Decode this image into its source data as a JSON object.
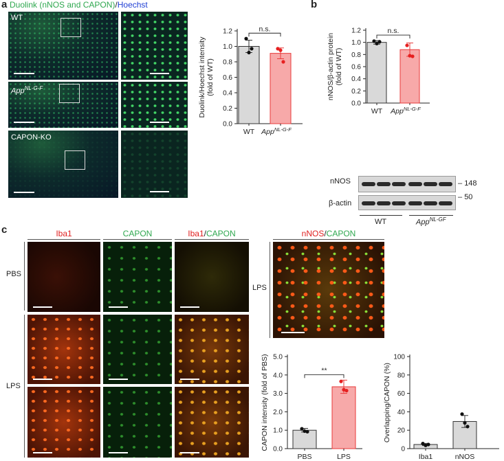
{
  "panel_a": {
    "letter": "a",
    "header_green": "Duolink (nNOS and CAPON)",
    "header_sep": "/",
    "header_blue": "Hoechst",
    "rows": [
      {
        "label": "WT",
        "label_sup": ""
      },
      {
        "label": "App",
        "label_sup": "NL-G-F"
      },
      {
        "label": "CAPON-KO",
        "label_sup": ""
      }
    ]
  },
  "panel_b": {
    "letter": "b",
    "blot_labels": {
      "nnos": "nNOS",
      "actin": "β-actin",
      "mw1": "148",
      "mw2": "50",
      "wt": "WT",
      "app": "App",
      "app_sup": "NL-GF"
    }
  },
  "panel_c": {
    "letter": "c",
    "col_headers": {
      "iba1": "Iba1",
      "capon": "CAPON",
      "merge_a": "Iba1",
      "merge_sep": "/",
      "merge_b": "CAPON",
      "nnos_a": "nNOS",
      "nnos_sep": "/",
      "nnos_b": "CAPON"
    },
    "row_labels": {
      "pbs": "PBS",
      "lps": "LPS",
      "lps_right": "LPS"
    }
  },
  "colors": {
    "wt_bar": "#d9d9d9",
    "app_bar": "#f7a9a9",
    "app_stroke": "#e83a3a",
    "dot_red": "#e62020",
    "green": "#2fa84f",
    "blue": "#1f3fd4",
    "red_text": "#e02020"
  },
  "chart_data": [
    {
      "type": "bar",
      "id": "a-chart",
      "categories": [
        "WT",
        "App NL-G-F"
      ],
      "values": [
        1.0,
        0.91
      ],
      "errors": [
        0.08,
        0.07
      ],
      "points": [
        [
          1.1,
          0.92,
          0.97
        ],
        [
          0.97,
          0.95,
          0.8
        ]
      ],
      "ylabel_lines": [
        "Duolink/Hoechst intensity",
        "(fold of WT)"
      ],
      "ylim": [
        0,
        1.2
      ],
      "yticks": [
        "0.0",
        "0.2",
        "0.4",
        "0.6",
        "0.8",
        "1.0",
        "1.2"
      ],
      "sig": "n.s."
    },
    {
      "type": "bar",
      "id": "b-chart",
      "categories": [
        "WT",
        "App NL-G-F"
      ],
      "values": [
        1.0,
        0.88
      ],
      "errors": [
        0.03,
        0.11
      ],
      "points": [
        [
          1.02,
          0.98,
          1.01
        ],
        [
          0.95,
          0.78,
          0.77
        ]
      ],
      "ylabel_lines": [
        "nNOS/β-actin protein",
        "(fold of WT)"
      ],
      "ylim": [
        0,
        1.2
      ],
      "yticks": [
        "0.0",
        "0.2",
        "0.4",
        "0.6",
        "0.8",
        "1.0",
        "1.2"
      ],
      "sig": "n.s."
    },
    {
      "type": "bar",
      "id": "c1-chart",
      "categories": [
        "PBS",
        "LPS"
      ],
      "values": [
        1.0,
        3.36
      ],
      "errors": [
        0.1,
        0.36
      ],
      "points": [
        [
          1.08,
          0.95,
          0.92
        ],
        [
          3.65,
          3.2,
          3.15
        ]
      ],
      "ylabel_lines": [
        "CAPON intensity (fold of PBS)"
      ],
      "ylim": [
        0,
        5.0
      ],
      "yticks": [
        "0.0",
        "1.0",
        "2.0",
        "3.0",
        "4.0",
        "5.0"
      ],
      "sig": "**"
    },
    {
      "type": "bar",
      "id": "c2-chart",
      "categories": [
        "Iba1",
        "nNOS"
      ],
      "values": [
        4.5,
        29.5
      ],
      "errors": [
        1.2,
        6.5
      ],
      "points": [
        [
          5.5,
          3.5,
          4.5
        ],
        [
          37.5,
          28.0,
          24.0
        ]
      ],
      "ylabel_lines": [
        "Overlapping/CAPON (%)"
      ],
      "ylim": [
        0,
        100
      ],
      "yticks": [
        "0",
        "20",
        "40",
        "60",
        "80",
        "100"
      ],
      "sig": ""
    }
  ]
}
